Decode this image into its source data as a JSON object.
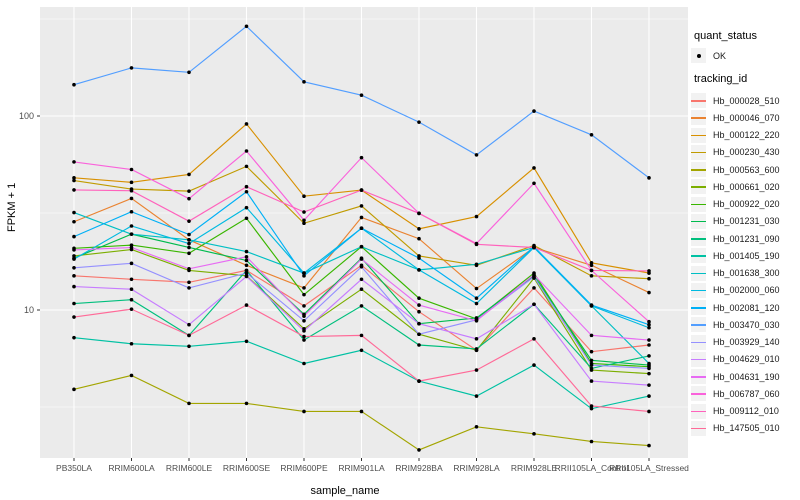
{
  "figure": {
    "background": "#FFFFFF",
    "panel_bg": "#EBEBEB",
    "grid_color": "#FFFFFF",
    "tick_color": "#333333",
    "axis_text_color": "#4D4D4D",
    "marker_color": "#000000"
  },
  "axes": {
    "y_title": "FPKM + 1",
    "x_title": "sample_name",
    "y_tick_labels": [
      "100",
      "10"
    ],
    "y_tick_values": [
      100,
      10
    ],
    "y_minor_values": [
      316.23,
      31.623,
      3.1623
    ]
  },
  "legend": {
    "quant_title": "quant_status",
    "quant_items": [
      {
        "label": "OK"
      }
    ],
    "tracking_title": "tracking_id"
  },
  "chart_data": {
    "type": "line",
    "title": "",
    "xlabel": "sample_name",
    "ylabel": "FPKM + 1",
    "yscale": "log10",
    "ylim": [
      1.7,
      365
    ],
    "grid": true,
    "legend_position": "right",
    "marker": "black-point-all-vertices",
    "categories": [
      "PB350LA",
      "RRIM600LA",
      "RRIM600LE",
      "RRIM600SE",
      "RRIM600PE",
      "RRIM901LA",
      "RRIM928BA",
      "RRIM928LA",
      "RRIM928LE",
      "RRII105LA_Control",
      "RRII105LA_Stressed"
    ],
    "series": [
      {
        "name": "Hb_000028_510",
        "color": "#F8766D",
        "values": [
          15,
          14.4,
          13.9,
          16,
          10.5,
          17,
          9.8,
          6.2,
          13,
          6.1,
          6.6
        ]
      },
      {
        "name": "Hb_000046_070",
        "color": "#EA8331",
        "values": [
          28.5,
          37.6,
          23,
          17,
          13,
          30,
          23.3,
          12.9,
          21,
          17,
          12.3
        ]
      },
      {
        "name": "Hb_000122_220",
        "color": "#D89000",
        "values": [
          48,
          45.5,
          50,
          91,
          38.6,
          41.5,
          26.2,
          30.3,
          54,
          17.5,
          15.5
        ]
      },
      {
        "name": "Hb_000230_430",
        "color": "#C09B00",
        "values": [
          46.5,
          42,
          41,
          55,
          28,
          34.4,
          19,
          17,
          21.5,
          15,
          14.5
        ]
      },
      {
        "name": "Hb_000563_600",
        "color": "#A3A500",
        "values": [
          3.9,
          4.6,
          3.3,
          3.3,
          3.0,
          3.0,
          1.9,
          2.5,
          2.3,
          2.1,
          2.0
        ]
      },
      {
        "name": "Hb_000661_020",
        "color": "#7CAE00",
        "values": [
          19,
          20.5,
          16,
          15,
          8,
          12.8,
          7.5,
          6.2,
          14.6,
          4.9,
          4.7
        ]
      },
      {
        "name": "Hb_000922_020",
        "color": "#39B600",
        "values": [
          20.8,
          21.6,
          19.6,
          29.7,
          12,
          21.2,
          11.5,
          9,
          15.5,
          5.3,
          5.1
        ]
      },
      {
        "name": "Hb_001231_030",
        "color": "#00BB4E",
        "values": [
          18.5,
          24.6,
          21,
          18,
          9.5,
          18.5,
          8.5,
          9.1,
          15,
          5.5,
          5.2
        ]
      },
      {
        "name": "Hb_001231_090",
        "color": "#00BF7D",
        "values": [
          10.8,
          11.3,
          7.4,
          16,
          7,
          10.5,
          6.6,
          6.3,
          10.7,
          5.0,
          5.8
        ]
      },
      {
        "name": "Hb_001405_190",
        "color": "#00C1A3",
        "values": [
          7.2,
          6.7,
          6.5,
          6.9,
          5.3,
          6.2,
          4.3,
          3.6,
          5.2,
          3.1,
          3.6
        ]
      },
      {
        "name": "Hb_001638_300",
        "color": "#00BFC4",
        "values": [
          31.8,
          24.6,
          23,
          20,
          15.5,
          21.2,
          16.1,
          17.2,
          21,
          10.5,
          5.3
        ]
      },
      {
        "name": "Hb_002000_060",
        "color": "#00BAE0",
        "values": [
          18.3,
          27.1,
          22,
          33.7,
          15.5,
          26.4,
          16.1,
          10.8,
          21,
          10.5,
          8.1
        ]
      },
      {
        "name": "Hb_002081_120",
        "color": "#00B0F6",
        "values": [
          23.9,
          32.1,
          24.5,
          40.7,
          15,
          26.4,
          18.5,
          11.5,
          21.2,
          10.6,
          8.4
        ]
      },
      {
        "name": "Hb_003470_030",
        "color": "#529EFF",
        "values": [
          145,
          177,
          168,
          290,
          150,
          128,
          93,
          63,
          106,
          80,
          48
        ]
      },
      {
        "name": "Hb_003929_140",
        "color": "#9590FF",
        "values": [
          16.5,
          17.4,
          13,
          15.5,
          8.8,
          16.7,
          7.5,
          8.9,
          14.8,
          5.2,
          5.0
        ]
      },
      {
        "name": "Hb_004629_010",
        "color": "#C77CFF",
        "values": [
          13.2,
          12.8,
          8.4,
          14.9,
          7.8,
          14.4,
          8.5,
          7.1,
          10.7,
          4.3,
          4.1
        ]
      },
      {
        "name": "Hb_004631_190",
        "color": "#E76BF3",
        "values": [
          20.4,
          21,
          16.3,
          18.8,
          9.3,
          18.3,
          10.6,
          8.8,
          15.2,
          7.4,
          7.0
        ]
      },
      {
        "name": "Hb_006787_060",
        "color": "#FA62DB",
        "values": [
          58,
          53,
          37.5,
          66,
          29,
          61,
          31.5,
          22,
          45,
          16,
          8.7
        ]
      },
      {
        "name": "Hb_009112_010",
        "color": "#FF62BC",
        "values": [
          41.6,
          41.2,
          28.7,
          43.2,
          32,
          41.5,
          31.5,
          21.8,
          21,
          16,
          15.9
        ]
      },
      {
        "name": "Hb_147505_010",
        "color": "#FF6A98",
        "values": [
          9.2,
          10.1,
          7.4,
          10.6,
          7.3,
          7.4,
          4.3,
          4.9,
          7.1,
          3.2,
          3.0
        ]
      }
    ]
  }
}
